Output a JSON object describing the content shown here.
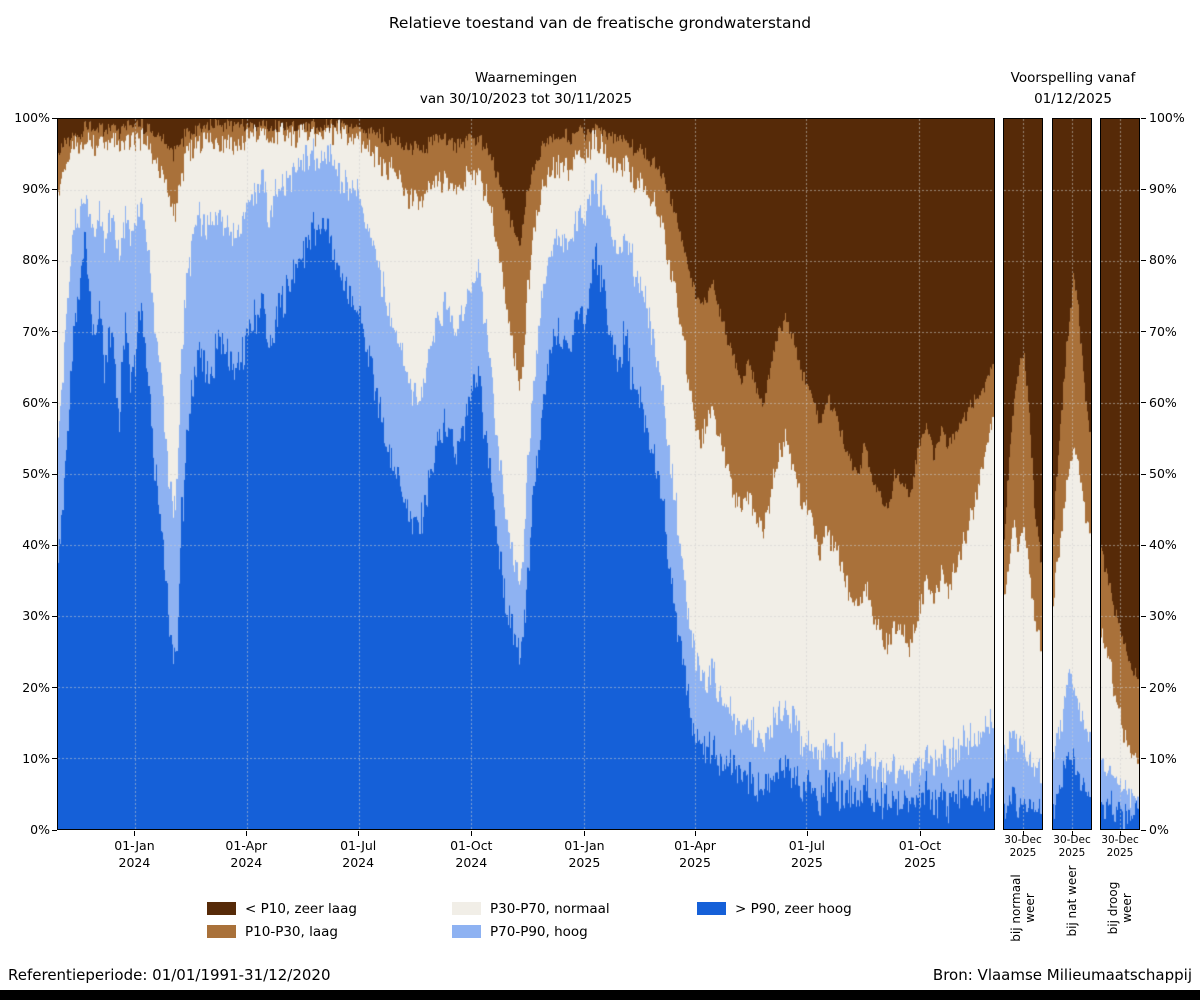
{
  "title": "Relatieve toestand van de freatische grondwaterstand",
  "observations_header": {
    "line1": "Waarnemingen",
    "line2": "van 30/10/2023 tot 30/11/2025"
  },
  "forecast_header": {
    "line1": "Voorspelling vanaf",
    "line2": "01/12/2025"
  },
  "footer": {
    "reference": "Referentieperiode: 01/01/1991-31/12/2020",
    "source": "Bron: Vlaamse Milieumaatschappij"
  },
  "legend": {
    "columns": [
      [
        {
          "label": "< P10, zeer laag",
          "color": "#562a08"
        },
        {
          "label": "P10-P30, laag",
          "color": "#a9713a"
        }
      ],
      [
        {
          "label": "P30-P70, normaal",
          "color": "#f1eee7"
        },
        {
          "label": "P70-P90, hoog",
          "color": "#8eb2f2"
        }
      ],
      [
        {
          "label": "> P90, zeer hoog",
          "color": "#1560d8"
        }
      ]
    ]
  },
  "chart_data": {
    "type": "area",
    "stacking": "percent",
    "unit": "%",
    "ylim": [
      0,
      100
    ],
    "grid": true,
    "bands": [
      {
        "name": "> P90, zeer hoog",
        "color": "#1560d8"
      },
      {
        "name": "P70-P90, hoog",
        "color": "#8eb2f2"
      },
      {
        "name": "P30-P70, normaal",
        "color": "#f1eee7"
      },
      {
        "name": "P10-P30, laag",
        "color": "#a9713a"
      },
      {
        "name": "< P10, zeer laag",
        "color": "#562a08"
      }
    ],
    "y_ticks": [
      "0%",
      "10%",
      "20%",
      "30%",
      "40%",
      "50%",
      "60%",
      "70%",
      "80%",
      "90%",
      "100%"
    ],
    "keyframes_format": "[day, cumulative_top_pct of: > P90 zeer hoog, P70-P90 hoog, P30-P70 normaal, P10-P30 laag] — < P10 zeer laag fills remainder to 100%",
    "main": {
      "start_date": "30/10/2023",
      "end_date": "30/11/2025",
      "days": 763,
      "x_ticks": [
        {
          "day": 63,
          "label": "01-Jan",
          "year": "2024"
        },
        {
          "day": 154,
          "label": "01-Apr",
          "year": "2024"
        },
        {
          "day": 245,
          "label": "01-Jul",
          "year": "2024"
        },
        {
          "day": 337,
          "label": "01-Oct",
          "year": "2024"
        },
        {
          "day": 429,
          "label": "01-Jan",
          "year": "2025"
        },
        {
          "day": 519,
          "label": "01-Apr",
          "year": "2025"
        },
        {
          "day": 610,
          "label": "01-Jul",
          "year": "2025"
        },
        {
          "day": 702,
          "label": "01-Oct",
          "year": "2025"
        }
      ],
      "keyframes": [
        [
          0,
          38,
          55,
          90,
          95
        ],
        [
          3,
          44,
          62,
          92,
          96
        ],
        [
          6,
          52,
          70,
          93,
          97
        ],
        [
          10,
          62,
          80,
          95,
          97
        ],
        [
          14,
          70,
          85,
          96,
          98
        ],
        [
          18,
          78,
          87,
          96,
          98
        ],
        [
          22,
          83,
          89,
          97,
          99
        ],
        [
          26,
          76,
          86,
          97,
          99
        ],
        [
          30,
          68,
          84,
          96,
          98
        ],
        [
          34,
          74,
          87,
          97,
          99
        ],
        [
          38,
          63,
          82,
          96,
          98
        ],
        [
          42,
          70,
          86,
          97,
          99
        ],
        [
          46,
          66,
          84,
          96,
          99
        ],
        [
          50,
          58,
          80,
          96,
          98
        ],
        [
          55,
          72,
          87,
          97,
          99
        ],
        [
          59,
          64,
          83,
          96,
          99
        ],
        [
          63,
          67,
          85,
          97,
          99
        ],
        [
          67,
          74,
          88,
          97,
          99
        ],
        [
          71,
          70,
          86,
          97,
          99
        ],
        [
          75,
          60,
          78,
          95,
          98
        ],
        [
          80,
          50,
          70,
          94,
          98
        ],
        [
          85,
          42,
          62,
          92,
          97
        ],
        [
          90,
          30,
          50,
          89,
          96
        ],
        [
          94,
          23,
          44,
          87,
          95
        ],
        [
          97,
          26,
          48,
          88,
          96
        ],
        [
          101,
          44,
          68,
          92,
          97
        ],
        [
          106,
          56,
          78,
          95,
          98
        ],
        [
          111,
          64,
          84,
          96,
          98
        ],
        [
          116,
          68,
          86,
          97,
          99
        ],
        [
          121,
          63,
          84,
          97,
          99
        ],
        [
          127,
          66,
          86,
          97,
          99
        ],
        [
          133,
          70,
          87,
          97,
          99
        ],
        [
          139,
          66,
          85,
          97,
          99
        ],
        [
          145,
          64,
          84,
          96,
          99
        ],
        [
          150,
          67,
          86,
          97,
          99
        ],
        [
          154,
          69,
          88,
          97,
          99
        ],
        [
          160,
          72,
          90,
          98,
          99
        ],
        [
          166,
          74,
          91,
          98,
          99
        ],
        [
          172,
          68,
          87,
          97,
          99
        ],
        [
          178,
          72,
          90,
          98,
          99
        ],
        [
          184,
          75,
          91,
          98,
          99
        ],
        [
          190,
          78,
          92,
          98,
          99
        ],
        [
          196,
          80,
          93,
          98,
          99
        ],
        [
          202,
          82,
          94,
          98,
          99
        ],
        [
          208,
          84,
          95,
          98,
          99
        ],
        [
          214,
          85,
          95,
          98,
          99
        ],
        [
          220,
          84,
          94,
          98,
          99
        ],
        [
          226,
          80,
          93,
          98,
          99
        ],
        [
          232,
          77,
          91,
          98,
          99
        ],
        [
          238,
          75,
          90,
          97,
          99
        ],
        [
          245,
          72,
          89,
          97,
          99
        ],
        [
          251,
          68,
          86,
          96,
          98
        ],
        [
          257,
          63,
          82,
          95,
          98
        ],
        [
          263,
          58,
          78,
          94,
          98
        ],
        [
          269,
          54,
          74,
          93,
          97
        ],
        [
          275,
          50,
          70,
          92,
          97
        ],
        [
          281,
          47,
          66,
          90,
          96
        ],
        [
          287,
          44,
          62,
          89,
          96
        ],
        [
          293,
          42,
          60,
          88,
          96
        ],
        [
          299,
          46,
          64,
          89,
          96
        ],
        [
          305,
          50,
          68,
          90,
          97
        ],
        [
          311,
          55,
          72,
          91,
          97
        ],
        [
          317,
          57,
          74,
          91,
          97
        ],
        [
          323,
          52,
          70,
          90,
          96
        ],
        [
          329,
          55,
          72,
          91,
          97
        ],
        [
          337,
          60,
          76,
          92,
          97
        ],
        [
          343,
          64,
          79,
          92,
          97
        ],
        [
          348,
          56,
          72,
          90,
          96
        ],
        [
          354,
          47,
          62,
          86,
          94
        ],
        [
          360,
          38,
          52,
          80,
          91
        ],
        [
          366,
          30,
          42,
          72,
          87
        ],
        [
          372,
          26,
          36,
          66,
          84
        ],
        [
          377,
          24,
          34,
          62,
          82
        ],
        [
          382,
          34,
          48,
          74,
          89
        ],
        [
          387,
          46,
          62,
          83,
          93
        ],
        [
          393,
          56,
          72,
          89,
          95
        ],
        [
          399,
          64,
          79,
          92,
          97
        ],
        [
          405,
          70,
          83,
          93,
          97
        ],
        [
          411,
          70,
          84,
          94,
          98
        ],
        [
          417,
          67,
          82,
          93,
          97
        ],
        [
          423,
          73,
          86,
          95,
          98
        ],
        [
          429,
          70,
          85,
          94,
          98
        ],
        [
          434,
          77,
          89,
          96,
          98
        ],
        [
          439,
          81,
          91,
          97,
          99
        ],
        [
          444,
          76,
          88,
          96,
          98
        ],
        [
          450,
          70,
          85,
          94,
          98
        ],
        [
          456,
          65,
          81,
          93,
          97
        ],
        [
          462,
          69,
          84,
          94,
          97
        ],
        [
          468,
          64,
          80,
          92,
          96
        ],
        [
          474,
          60,
          77,
          91,
          96
        ],
        [
          480,
          57,
          74,
          90,
          95
        ],
        [
          486,
          52,
          69,
          88,
          94
        ],
        [
          492,
          46,
          62,
          85,
          92
        ],
        [
          498,
          38,
          54,
          80,
          90
        ],
        [
          504,
          30,
          45,
          75,
          86
        ],
        [
          510,
          22,
          35,
          68,
          82
        ],
        [
          515,
          17,
          28,
          62,
          78
        ],
        [
          519,
          14,
          25,
          58,
          76
        ],
        [
          524,
          12,
          22,
          55,
          74
        ],
        [
          529,
          11,
          21,
          57,
          75
        ],
        [
          534,
          12,
          23,
          60,
          77
        ],
        [
          539,
          10,
          19,
          55,
          73
        ],
        [
          545,
          9,
          17,
          51,
          69
        ],
        [
          551,
          8,
          15,
          47,
          66
        ],
        [
          557,
          7,
          14,
          45,
          63
        ],
        [
          563,
          7,
          14,
          47,
          66
        ],
        [
          569,
          6,
          13,
          44,
          62
        ],
        [
          575,
          6,
          12,
          42,
          60
        ],
        [
          581,
          7,
          14,
          47,
          65
        ],
        [
          587,
          8,
          16,
          52,
          70
        ],
        [
          593,
          8,
          17,
          55,
          72
        ],
        [
          599,
          7,
          15,
          51,
          69
        ],
        [
          605,
          6,
          13,
          47,
          65
        ],
        [
          610,
          6,
          12,
          45,
          63
        ],
        [
          616,
          5,
          11,
          42,
          60
        ],
        [
          622,
          5,
          10,
          39,
          57
        ],
        [
          628,
          6,
          12,
          42,
          61
        ],
        [
          634,
          5,
          11,
          39,
          58
        ],
        [
          640,
          5,
          10,
          36,
          55
        ],
        [
          646,
          5,
          9,
          33,
          52
        ],
        [
          652,
          4,
          9,
          31,
          50
        ],
        [
          658,
          5,
          10,
          34,
          54
        ],
        [
          664,
          4,
          9,
          30,
          49
        ],
        [
          670,
          4,
          8,
          28,
          47
        ],
        [
          676,
          4,
          8,
          26,
          45
        ],
        [
          682,
          4,
          9,
          29,
          50
        ],
        [
          688,
          4,
          8,
          28,
          49
        ],
        [
          694,
          4,
          8,
          26,
          47
        ],
        [
          702,
          4,
          9,
          31,
          54
        ],
        [
          708,
          5,
          10,
          35,
          57
        ],
        [
          714,
          4,
          9,
          32,
          53
        ],
        [
          720,
          5,
          11,
          37,
          57
        ],
        [
          726,
          4,
          10,
          34,
          54
        ],
        [
          732,
          5,
          11,
          37,
          56
        ],
        [
          738,
          5,
          12,
          40,
          58
        ],
        [
          744,
          5,
          13,
          44,
          60
        ],
        [
          750,
          5,
          13,
          48,
          61
        ],
        [
          756,
          5,
          14,
          53,
          63
        ],
        [
          762,
          5,
          15,
          58,
          65
        ]
      ]
    },
    "forecast": {
      "start_date": "01/12/2025",
      "panels": [
        {
          "name": "bij normaal weer",
          "tick_label": "30-Dec",
          "tick_year": "2025",
          "days": 30,
          "keyframes": [
            [
              0,
              3,
              10,
              32,
              40
            ],
            [
              4,
              4,
              13,
              38,
              52
            ],
            [
              8,
              4,
              14,
              42,
              60
            ],
            [
              12,
              3,
              12,
              40,
              65
            ],
            [
              16,
              3,
              11,
              42,
              67
            ],
            [
              20,
              3,
              10,
              36,
              58
            ],
            [
              24,
              3,
              9,
              30,
              46
            ],
            [
              29,
              2,
              8,
              26,
              38
            ]
          ]
        },
        {
          "name": "bij nat weer",
          "tick_label": "30-Dec",
          "tick_year": "2025",
          "days": 30,
          "keyframes": [
            [
              0,
              3,
              10,
              32,
              42
            ],
            [
              4,
              5,
              13,
              38,
              52
            ],
            [
              8,
              8,
              17,
              44,
              62
            ],
            [
              12,
              11,
              22,
              50,
              70
            ],
            [
              16,
              10,
              20,
              54,
              78
            ],
            [
              20,
              8,
              18,
              52,
              74
            ],
            [
              24,
              6,
              15,
              46,
              64
            ],
            [
              29,
              5,
              13,
              42,
              56
            ]
          ]
        },
        {
          "name": "bij droog weer",
          "tick_label": "30-Dec",
          "tick_year": "2025",
          "days": 30,
          "keyframes": [
            [
              0,
              3,
              9,
              28,
              40
            ],
            [
              4,
              3,
              8,
              25,
              36
            ],
            [
              8,
              3,
              8,
              22,
              33
            ],
            [
              12,
              2,
              7,
              18,
              30
            ],
            [
              16,
              2,
              6,
              15,
              27
            ],
            [
              20,
              2,
              5,
              12,
              25
            ],
            [
              24,
              2,
              5,
              11,
              23
            ],
            [
              29,
              2,
              4,
              9,
              21
            ]
          ]
        }
      ]
    }
  }
}
